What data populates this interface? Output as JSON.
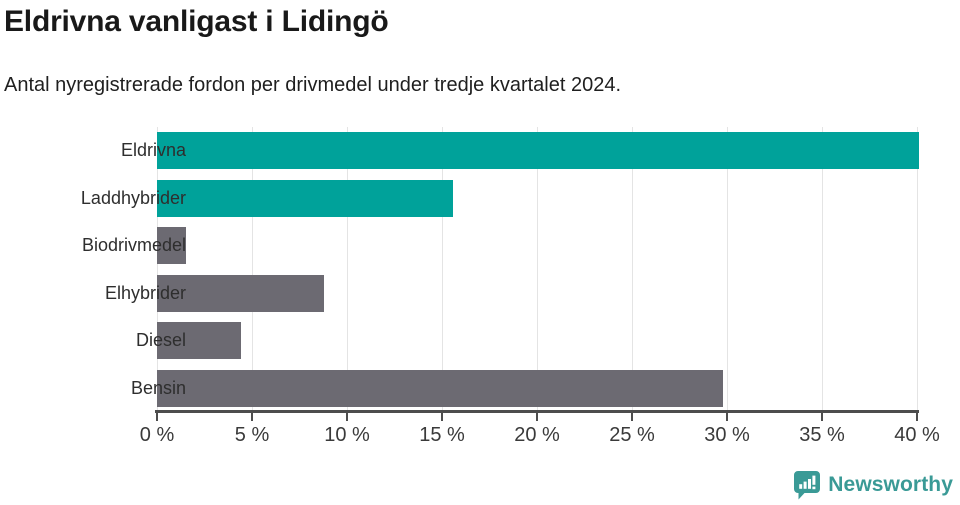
{
  "page": {
    "background": "#ffffff"
  },
  "chart_data": {
    "type": "bar",
    "orientation": "horizontal",
    "title": "Eldrivna vanligast i Lidingö",
    "subtitle": "Antal nyregistrerade fordon per drivmedel under tredje kvartalet 2024.",
    "categories": [
      "Eldrivna",
      "Laddhybrider",
      "Biodrivmedel",
      "Elhybrider",
      "Diesel",
      "Bensin"
    ],
    "values": [
      40.1,
      15.6,
      1.5,
      8.8,
      4.4,
      29.8
    ],
    "bar_colors": [
      "#00a29a",
      "#00a29a",
      "#6c6a72",
      "#6c6a72",
      "#6c6a72",
      "#6c6a72"
    ],
    "xlabel": "",
    "ylabel": "",
    "xlim": [
      0,
      40
    ],
    "x_tick_step": 5,
    "x_tick_labels": [
      "0 %",
      "5 %",
      "10 %",
      "15 %",
      "20 %",
      "25 %",
      "30 %",
      "35 %",
      "40 %"
    ],
    "grid": true,
    "legend": false
  },
  "colors": {
    "teal": "#00a29a",
    "gray": "#6c6a72",
    "axis": "#4d4d4d",
    "gridline": "#e4e4e4",
    "title_text": "#191919",
    "label_text": "#2e2e2e"
  },
  "footer": {
    "brand": "Newsworthy",
    "brand_color": "#3a9a96",
    "logo_icon": "bar-chart-speech-bubble-icon"
  }
}
